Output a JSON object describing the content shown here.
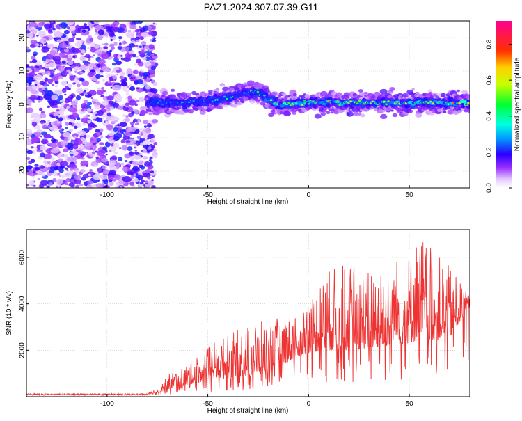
{
  "title": "PAZ1.2024.307.07.39.G11",
  "chart_data": [
    {
      "type": "heatmap",
      "xlabel": "Height of straight line (km)",
      "ylabel": "Frequency (Hz)",
      "xlim": [
        -140,
        80
      ],
      "ylim": [
        -25,
        25
      ],
      "xticks": [
        -100,
        -50,
        0,
        50
      ],
      "yticks": [
        -20,
        -10,
        0,
        10,
        20
      ],
      "grid": true,
      "colorbar": {
        "label": "Normalized spectral amplitude",
        "ticks": [
          0.0,
          0.2,
          0.4,
          0.6,
          0.8
        ],
        "range": [
          0,
          0.93
        ]
      },
      "noise_region": {
        "x_from": -140,
        "x_to": -78,
        "y_from": -25,
        "y_to": 25
      },
      "signal_ridge": {
        "x": [
          -78,
          -70,
          -60,
          -50,
          -40,
          -35,
          -30,
          -25,
          -20,
          -15,
          -10,
          -5,
          0,
          10,
          20,
          30,
          40,
          50,
          60,
          70,
          80
        ],
        "y": [
          0.5,
          0.5,
          0.5,
          1.0,
          2.0,
          3.0,
          3.5,
          3.5,
          1.5,
          0.0,
          0.0,
          0.5,
          0.5,
          0.5,
          0.5,
          0.5,
          0.5,
          0.5,
          0.5,
          0.5,
          0.5
        ],
        "amplitude": [
          0.35,
          0.35,
          0.4,
          0.4,
          0.5,
          0.55,
          0.5,
          0.5,
          0.6,
          0.75,
          0.85,
          0.9,
          0.8,
          0.75,
          0.7,
          0.75,
          0.7,
          0.8,
          0.75,
          0.8,
          0.9
        ]
      }
    },
    {
      "type": "line",
      "xlabel": "Height of straight line (km)",
      "ylabel": "SNR (10 * v/v)",
      "xlim": [
        -140,
        80
      ],
      "ylim": [
        0,
        7200
      ],
      "xticks": [
        -100,
        -50,
        0,
        50
      ],
      "yticks": [
        2000,
        4000,
        6000
      ],
      "grid": true,
      "series": [
        {
          "color": "#ee3333",
          "envelope": {
            "x": [
              -140,
              -80,
              -75,
              -70,
              -60,
              -50,
              -40,
              -30,
              -20,
              -10,
              0,
              10,
              20,
              30,
              40,
              50,
              55,
              60,
              70,
              80
            ],
            "base": [
              80,
              80,
              150,
              300,
              500,
              700,
              800,
              900,
              1000,
              1500,
              1900,
              2000,
              2000,
              2100,
              2200,
              2300,
              2400,
              2400,
              2500,
              3900
            ],
            "peak": [
              130,
              130,
              400,
              1000,
              1400,
              2200,
              2700,
              3100,
              3300,
              3600,
              4200,
              5500,
              5800,
              5500,
              6000,
              6200,
              7200,
              6500,
              5600,
              4300
            ]
          }
        }
      ]
    }
  ]
}
